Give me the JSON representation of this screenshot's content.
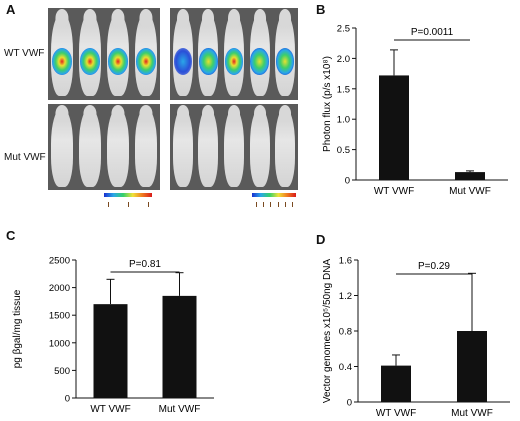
{
  "panels": {
    "a": "A",
    "b": "B",
    "c": "C",
    "d": "D"
  },
  "imaging": {
    "row_labels": [
      "WT VWF",
      "Mut VWF"
    ],
    "groups": [
      {
        "row": "WT VWF",
        "left_signals": [
          "high",
          "high",
          "high",
          "high"
        ],
        "right_signals": [
          "low",
          "mid",
          "high",
          "mid",
          "mid"
        ]
      },
      {
        "row": "Mut VWF",
        "left_signals": [
          "none",
          "none",
          "none",
          "none"
        ],
        "right_signals": [
          "none",
          "none",
          "none",
          "none",
          "none"
        ]
      }
    ],
    "colors": {
      "high": "#e8e030",
      "mid": "#3ccf6a",
      "low": "#2a4fd8",
      "edge": "#1a2fd0"
    }
  },
  "chart_data": [
    {
      "id": "B",
      "type": "bar",
      "categories": [
        "WT VWF",
        "Mut VWF"
      ],
      "values": [
        1.72,
        0.13
      ],
      "errors": [
        0.42,
        0.02
      ],
      "ylabel": "Photon flux (p/s x10⁸)",
      "ylim": [
        0,
        2.5
      ],
      "yticks": [
        "0",
        "0.5",
        "1.0",
        "1.5",
        "2.0",
        "2.5"
      ],
      "annotation": "P=0.0011",
      "bar_color": "#111111"
    },
    {
      "id": "C",
      "type": "bar",
      "categories": [
        "WT VWF",
        "Mut VWF"
      ],
      "values": [
        1700,
        1850
      ],
      "errors": [
        450,
        420
      ],
      "ylabel": "pg βgal/mg tissue",
      "ylim": [
        0,
        2500
      ],
      "yticks": [
        "0",
        "500",
        "1000",
        "1500",
        "2000",
        "2500"
      ],
      "annotation": "P=0.81",
      "bar_color": "#111111"
    },
    {
      "id": "D",
      "type": "bar",
      "categories": [
        "WT VWF",
        "Mut VWF"
      ],
      "values": [
        0.41,
        0.8
      ],
      "errors": [
        0.12,
        0.65
      ],
      "ylabel": "Vector genomes x10⁵/50ng DNA",
      "ylim": [
        0,
        1.6
      ],
      "yticks": [
        "0",
        "0.4",
        "0.8",
        "1.2",
        "1.6"
      ],
      "annotation": "P=0.29",
      "bar_color": "#111111"
    }
  ]
}
